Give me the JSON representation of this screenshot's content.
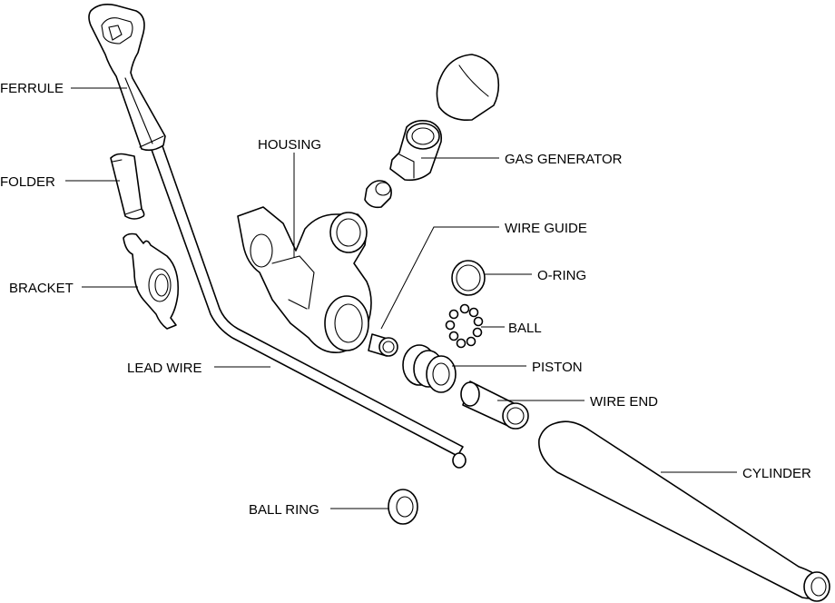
{
  "labels": {
    "ferrule": "FERRULE",
    "folder": "FOLDER",
    "bracket": "BRACKET",
    "lead_wire": "LEAD WIRE",
    "housing": "HOUSING",
    "gas_generator": "GAS GENERATOR",
    "wire_guide": "WIRE GUIDE",
    "o_ring": "O-RING",
    "ball": "BALL",
    "piston": "PISTON",
    "wire_end": "WIRE END",
    "cylinder": "CYLINDER",
    "ball_ring": "BALL RING"
  },
  "colors": {
    "line": "#000000",
    "background": "#ffffff"
  }
}
